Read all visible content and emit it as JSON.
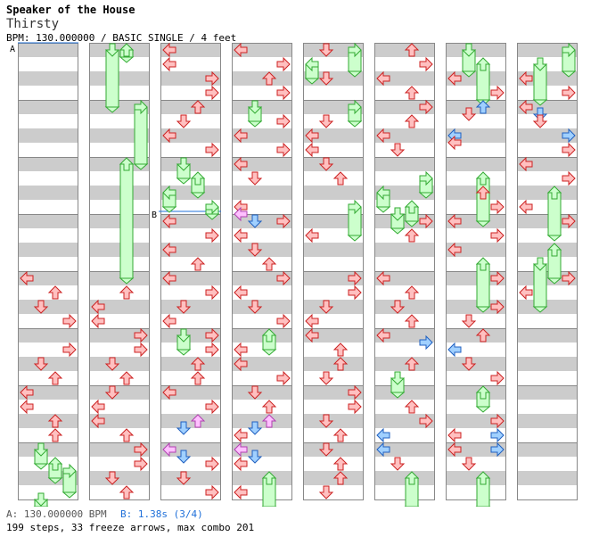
{
  "header": {
    "song_title": "Speaker of the House",
    "artist": "Thirsty",
    "chart_info": "BPM: 130.000000 / BASIC SINGLE / 4 feet"
  },
  "markers": {
    "a": "A",
    "b": "B"
  },
  "footer": {
    "bpm_line": "A: 130.000000 BPM",
    "stop_line": "B: 1.38s (3/4)",
    "stats": "199 steps, 33 freeze arrows, max combo 201"
  },
  "colors": {
    "stripe": "#cccccc",
    "frame": "#888888",
    "arrow_fill": "#ffc0c0",
    "arrow_stroke": "#cc2222",
    "blue_fill": "#a0d0ff",
    "blue_stroke": "#2060c0",
    "pink_fill": "#ffc0ff",
    "pink_stroke": "#b040b0",
    "freeze_fill": "#ccffcc",
    "freeze_stroke": "#33aa33",
    "marker_line": "#1e6fd9"
  },
  "notes": [
    {
      "c": 0,
      "t": "16",
      "d": "L",
      "k": "n"
    },
    {
      "c": 0,
      "t": "17",
      "d": "U",
      "k": "n"
    },
    {
      "c": 0,
      "t": "18",
      "d": "D",
      "k": "n"
    },
    {
      "c": 0,
      "t": "19",
      "d": "R",
      "k": "n"
    },
    {
      "c": 0,
      "t": "21",
      "d": "R",
      "k": "n"
    },
    {
      "c": 0,
      "t": "22",
      "d": "D",
      "k": "n"
    },
    {
      "c": 0,
      "t": "23",
      "d": "U",
      "k": "n"
    },
    {
      "c": 0,
      "t": "24",
      "d": "L",
      "k": "n"
    },
    {
      "c": 0,
      "t": "25",
      "d": "L",
      "k": "n"
    },
    {
      "c": 0,
      "t": "26",
      "d": "U",
      "k": "n"
    },
    {
      "c": 0,
      "t": "27",
      "d": "U",
      "k": "n"
    },
    {
      "c": 0,
      "t": "28",
      "d": "D",
      "k": "f",
      "e": "29"
    },
    {
      "c": 0,
      "t": "29",
      "d": "U",
      "k": "f",
      "e": "30"
    },
    {
      "c": 0,
      "t": "29.5",
      "d": "R",
      "k": "f",
      "e": "31"
    },
    {
      "c": 0,
      "t": "31.5",
      "d": "D",
      "k": "f",
      "e": "32"
    },
    {
      "c": 1,
      "t": "0",
      "d": "D",
      "k": "f",
      "e": "4"
    },
    {
      "c": 1,
      "t": "0",
      "d": "U",
      "k": "f",
      "e": "0.5"
    },
    {
      "c": 1,
      "t": "4",
      "d": "R",
      "k": "f",
      "e": "8"
    },
    {
      "c": 1,
      "t": "8",
      "d": "U",
      "k": "f",
      "e": "16"
    },
    {
      "c": 1,
      "t": "17",
      "d": "U",
      "k": "n"
    },
    {
      "c": 1,
      "t": "18",
      "d": "L",
      "k": "n"
    },
    {
      "c": 1,
      "t": "19",
      "d": "L",
      "k": "n"
    },
    {
      "c": 1,
      "t": "20",
      "d": "R",
      "k": "n"
    },
    {
      "c": 1,
      "t": "21",
      "d": "R",
      "k": "n"
    },
    {
      "c": 1,
      "t": "22",
      "d": "D",
      "k": "n"
    },
    {
      "c": 1,
      "t": "23",
      "d": "U",
      "k": "n"
    },
    {
      "c": 1,
      "t": "24",
      "d": "D",
      "k": "n"
    },
    {
      "c": 1,
      "t": "25",
      "d": "L",
      "k": "n"
    },
    {
      "c": 1,
      "t": "26",
      "d": "L",
      "k": "n"
    },
    {
      "c": 1,
      "t": "27",
      "d": "U",
      "k": "n"
    },
    {
      "c": 1,
      "t": "28",
      "d": "R",
      "k": "n"
    },
    {
      "c": 1,
      "t": "29",
      "d": "R",
      "k": "n"
    },
    {
      "c": 1,
      "t": "30",
      "d": "D",
      "k": "n"
    },
    {
      "c": 1,
      "t": "31",
      "d": "U",
      "k": "n"
    },
    {
      "c": 2,
      "t": "0",
      "d": "L",
      "k": "n"
    },
    {
      "c": 2,
      "t": "1",
      "d": "L",
      "k": "n"
    },
    {
      "c": 2,
      "t": "2",
      "d": "R",
      "k": "n"
    },
    {
      "c": 2,
      "t": "3",
      "d": "R",
      "k": "n"
    },
    {
      "c": 2,
      "t": "4",
      "d": "U",
      "k": "n"
    },
    {
      "c": 2,
      "t": "5",
      "d": "D",
      "k": "n"
    },
    {
      "c": 2,
      "t": "6",
      "d": "L",
      "k": "n"
    },
    {
      "c": 2,
      "t": "7",
      "d": "R",
      "k": "n"
    },
    {
      "c": 2,
      "t": "8",
      "d": "D",
      "k": "f",
      "e": "9"
    },
    {
      "c": 2,
      "t": "9",
      "d": "U",
      "k": "f",
      "e": "10"
    },
    {
      "c": 2,
      "t": "10",
      "d": "L",
      "k": "f",
      "e": "11"
    },
    {
      "c": 2,
      "t": "11",
      "d": "R",
      "k": "f",
      "e": "11.5"
    },
    {
      "c": 2,
      "t": "12",
      "d": "L",
      "k": "n"
    },
    {
      "c": 2,
      "t": "13",
      "d": "R",
      "k": "n"
    },
    {
      "c": 2,
      "t": "14",
      "d": "L",
      "k": "n"
    },
    {
      "c": 2,
      "t": "15",
      "d": "U",
      "k": "n"
    },
    {
      "c": 2,
      "t": "16",
      "d": "L",
      "k": "n"
    },
    {
      "c": 2,
      "t": "17",
      "d": "R",
      "k": "n"
    },
    {
      "c": 2,
      "t": "18",
      "d": "D",
      "k": "n"
    },
    {
      "c": 2,
      "t": "19",
      "d": "L",
      "k": "n"
    },
    {
      "c": 2,
      "t": "20",
      "d": "D",
      "k": "f",
      "e": "21"
    },
    {
      "c": 2,
      "t": "20",
      "d": "R",
      "k": "n"
    },
    {
      "c": 2,
      "t": "21",
      "d": "R",
      "k": "n"
    },
    {
      "c": 2,
      "t": "22",
      "d": "U",
      "k": "n"
    },
    {
      "c": 2,
      "t": "23",
      "d": "U",
      "k": "n"
    },
    {
      "c": 2,
      "t": "24",
      "d": "L",
      "k": "n"
    },
    {
      "c": 2,
      "t": "25",
      "d": "R",
      "k": "n"
    },
    {
      "c": 2,
      "t": "26",
      "d": "U",
      "k": "p"
    },
    {
      "c": 2,
      "t": "26.5",
      "d": "D",
      "k": "b"
    },
    {
      "c": 2,
      "t": "28",
      "d": "L",
      "k": "p"
    },
    {
      "c": 2,
      "t": "28.5",
      "d": "D",
      "k": "b"
    },
    {
      "c": 2,
      "t": "29",
      "d": "R",
      "k": "n"
    },
    {
      "c": 2,
      "t": "30",
      "d": "D",
      "k": "n"
    },
    {
      "c": 2,
      "t": "31",
      "d": "R",
      "k": "n"
    },
    {
      "c": 3,
      "t": "0",
      "d": "L",
      "k": "n"
    },
    {
      "c": 3,
      "t": "1",
      "d": "R",
      "k": "n"
    },
    {
      "c": 3,
      "t": "2",
      "d": "U",
      "k": "n"
    },
    {
      "c": 3,
      "t": "3",
      "d": "R",
      "k": "n"
    },
    {
      "c": 3,
      "t": "4",
      "d": "D",
      "k": "f",
      "e": "5"
    },
    {
      "c": 3,
      "t": "5",
      "d": "R",
      "k": "n"
    },
    {
      "c": 3,
      "t": "6",
      "d": "L",
      "k": "n"
    },
    {
      "c": 3,
      "t": "7",
      "d": "R",
      "k": "n"
    },
    {
      "c": 3,
      "t": "8",
      "d": "L",
      "k": "n"
    },
    {
      "c": 3,
      "t": "9",
      "d": "D",
      "k": "n"
    },
    {
      "c": 3,
      "t": "11",
      "d": "L",
      "k": "n"
    },
    {
      "c": 3,
      "t": "11.5",
      "d": "L",
      "k": "p"
    },
    {
      "c": 3,
      "t": "12",
      "d": "D",
      "k": "b"
    },
    {
      "c": 3,
      "t": "12",
      "d": "R",
      "k": "n"
    },
    {
      "c": 3,
      "t": "13",
      "d": "L",
      "k": "n"
    },
    {
      "c": 3,
      "t": "14",
      "d": "D",
      "k": "n"
    },
    {
      "c": 3,
      "t": "15",
      "d": "U",
      "k": "n"
    },
    {
      "c": 3,
      "t": "16",
      "d": "R",
      "k": "n"
    },
    {
      "c": 3,
      "t": "17",
      "d": "L",
      "k": "n"
    },
    {
      "c": 3,
      "t": "18",
      "d": "D",
      "k": "n"
    },
    {
      "c": 3,
      "t": "19",
      "d": "R",
      "k": "n"
    },
    {
      "c": 3,
      "t": "20",
      "d": "U",
      "k": "f",
      "e": "21"
    },
    {
      "c": 3,
      "t": "21",
      "d": "L",
      "k": "n"
    },
    {
      "c": 3,
      "t": "22",
      "d": "L",
      "k": "n"
    },
    {
      "c": 3,
      "t": "23",
      "d": "R",
      "k": "n"
    },
    {
      "c": 3,
      "t": "24",
      "d": "D",
      "k": "n"
    },
    {
      "c": 3,
      "t": "25",
      "d": "U",
      "k": "n"
    },
    {
      "c": 3,
      "t": "26",
      "d": "U",
      "k": "p"
    },
    {
      "c": 3,
      "t": "26.5",
      "d": "D",
      "k": "b"
    },
    {
      "c": 3,
      "t": "27",
      "d": "L",
      "k": "n"
    },
    {
      "c": 3,
      "t": "28",
      "d": "L",
      "k": "p"
    },
    {
      "c": 3,
      "t": "28.5",
      "d": "D",
      "k": "b"
    },
    {
      "c": 3,
      "t": "29",
      "d": "L",
      "k": "n"
    },
    {
      "c": 3,
      "t": "30",
      "d": "U",
      "k": "f",
      "e": "32"
    },
    {
      "c": 3,
      "t": "31",
      "d": "L",
      "k": "n"
    },
    {
      "c": 4,
      "t": "0",
      "d": "R",
      "k": "f",
      "e": "1.5"
    },
    {
      "c": 4,
      "t": "0",
      "d": "D",
      "k": "n"
    },
    {
      "c": 4,
      "t": "1",
      "d": "L",
      "k": "f",
      "e": "2"
    },
    {
      "c": 4,
      "t": "2",
      "d": "D",
      "k": "n"
    },
    {
      "c": 4,
      "t": "4",
      "d": "R",
      "k": "f",
      "e": "5"
    },
    {
      "c": 4,
      "t": "5",
      "d": "D",
      "k": "n"
    },
    {
      "c": 4,
      "t": "6",
      "d": "L",
      "k": "n"
    },
    {
      "c": 4,
      "t": "7",
      "d": "L",
      "k": "n"
    },
    {
      "c": 4,
      "t": "8",
      "d": "D",
      "k": "n"
    },
    {
      "c": 4,
      "t": "9",
      "d": "U",
      "k": "n"
    },
    {
      "c": 4,
      "t": "11",
      "d": "R",
      "k": "f",
      "e": "13"
    },
    {
      "c": 4,
      "t": "13",
      "d": "L",
      "k": "n"
    },
    {
      "c": 4,
      "t": "16",
      "d": "R",
      "k": "n"
    },
    {
      "c": 4,
      "t": "17",
      "d": "R",
      "k": "n"
    },
    {
      "c": 4,
      "t": "18",
      "d": "D",
      "k": "n"
    },
    {
      "c": 4,
      "t": "19",
      "d": "L",
      "k": "n"
    },
    {
      "c": 4,
      "t": "20",
      "d": "L",
      "k": "n"
    },
    {
      "c": 4,
      "t": "21",
      "d": "U",
      "k": "n"
    },
    {
      "c": 4,
      "t": "22",
      "d": "U",
      "k": "n"
    },
    {
      "c": 4,
      "t": "23",
      "d": "D",
      "k": "n"
    },
    {
      "c": 4,
      "t": "24",
      "d": "R",
      "k": "n"
    },
    {
      "c": 4,
      "t": "25",
      "d": "R",
      "k": "n"
    },
    {
      "c": 4,
      "t": "26",
      "d": "D",
      "k": "n"
    },
    {
      "c": 4,
      "t": "27",
      "d": "U",
      "k": "n"
    },
    {
      "c": 4,
      "t": "28",
      "d": "D",
      "k": "n"
    },
    {
      "c": 4,
      "t": "29",
      "d": "U",
      "k": "n"
    },
    {
      "c": 4,
      "t": "30",
      "d": "U",
      "k": "n"
    },
    {
      "c": 4,
      "t": "31",
      "d": "D",
      "k": "n"
    },
    {
      "c": 5,
      "t": "0",
      "d": "U",
      "k": "n"
    },
    {
      "c": 5,
      "t": "1",
      "d": "R",
      "k": "n"
    },
    {
      "c": 5,
      "t": "2",
      "d": "L",
      "k": "n"
    },
    {
      "c": 5,
      "t": "3",
      "d": "U",
      "k": "n"
    },
    {
      "c": 5,
      "t": "4",
      "d": "R",
      "k": "n"
    },
    {
      "c": 5,
      "t": "5",
      "d": "U",
      "k": "n"
    },
    {
      "c": 5,
      "t": "6",
      "d": "L",
      "k": "n"
    },
    {
      "c": 5,
      "t": "7",
      "d": "D",
      "k": "n"
    },
    {
      "c": 5,
      "t": "9",
      "d": "R",
      "k": "f",
      "e": "10"
    },
    {
      "c": 5,
      "t": "10",
      "d": "L",
      "k": "f",
      "e": "11"
    },
    {
      "c": 5,
      "t": "11",
      "d": "U",
      "k": "f",
      "e": "12"
    },
    {
      "c": 5,
      "t": "11.5",
      "d": "D",
      "k": "f",
      "e": "12.5"
    },
    {
      "c": 5,
      "t": "12",
      "d": "R",
      "k": "n"
    },
    {
      "c": 5,
      "t": "13",
      "d": "U",
      "k": "n"
    },
    {
      "c": 5,
      "t": "16",
      "d": "L",
      "k": "n"
    },
    {
      "c": 5,
      "t": "17",
      "d": "U",
      "k": "n"
    },
    {
      "c": 5,
      "t": "18",
      "d": "D",
      "k": "n"
    },
    {
      "c": 5,
      "t": "19",
      "d": "U",
      "k": "n"
    },
    {
      "c": 5,
      "t": "20",
      "d": "L",
      "k": "n"
    },
    {
      "c": 5,
      "t": "20.5",
      "d": "R",
      "k": "b"
    },
    {
      "c": 5,
      "t": "22",
      "d": "U",
      "k": "n"
    },
    {
      "c": 5,
      "t": "23",
      "d": "D",
      "k": "f",
      "e": "24"
    },
    {
      "c": 5,
      "t": "25",
      "d": "U",
      "k": "n"
    },
    {
      "c": 5,
      "t": "26",
      "d": "R",
      "k": "n"
    },
    {
      "c": 5,
      "t": "27",
      "d": "L",
      "k": "b"
    },
    {
      "c": 5,
      "t": "28",
      "d": "L",
      "k": "b"
    },
    {
      "c": 5,
      "t": "29",
      "d": "D",
      "k": "n"
    },
    {
      "c": 5,
      "t": "30",
      "d": "U",
      "k": "f",
      "e": "32"
    },
    {
      "c": 6,
      "t": "0",
      "d": "D",
      "k": "f",
      "e": "1.5"
    },
    {
      "c": 6,
      "t": "1",
      "d": "U",
      "k": "f",
      "e": "3.5"
    },
    {
      "c": 6,
      "t": "2",
      "d": "L",
      "k": "n"
    },
    {
      "c": 6,
      "t": "3",
      "d": "R",
      "k": "n"
    },
    {
      "c": 6,
      "t": "4",
      "d": "U",
      "k": "b"
    },
    {
      "c": 6,
      "t": "4.5",
      "d": "D",
      "k": "n"
    },
    {
      "c": 6,
      "t": "6",
      "d": "L",
      "k": "b"
    },
    {
      "c": 6,
      "t": "6.5",
      "d": "L",
      "k": "n"
    },
    {
      "c": 6,
      "t": "9",
      "d": "U",
      "k": "f",
      "e": "12"
    },
    {
      "c": 6,
      "t": "10",
      "d": "U",
      "k": "n"
    },
    {
      "c": 6,
      "t": "11",
      "d": "R",
      "k": "n"
    },
    {
      "c": 6,
      "t": "12",
      "d": "L",
      "k": "n"
    },
    {
      "c": 6,
      "t": "13",
      "d": "R",
      "k": "n"
    },
    {
      "c": 6,
      "t": "14",
      "d": "L",
      "k": "n"
    },
    {
      "c": 6,
      "t": "15",
      "d": "U",
      "k": "f",
      "e": "18"
    },
    {
      "c": 6,
      "t": "16",
      "d": "R",
      "k": "n"
    },
    {
      "c": 6,
      "t": "18",
      "d": "R",
      "k": "n"
    },
    {
      "c": 6,
      "t": "19",
      "d": "D",
      "k": "n"
    },
    {
      "c": 6,
      "t": "20",
      "d": "U",
      "k": "n"
    },
    {
      "c": 6,
      "t": "21",
      "d": "L",
      "k": "b"
    },
    {
      "c": 6,
      "t": "22",
      "d": "D",
      "k": "n"
    },
    {
      "c": 6,
      "t": "23",
      "d": "R",
      "k": "n"
    },
    {
      "c": 6,
      "t": "24",
      "d": "U",
      "k": "f",
      "e": "25"
    },
    {
      "c": 6,
      "t": "26",
      "d": "R",
      "k": "n"
    },
    {
      "c": 6,
      "t": "27",
      "d": "L",
      "k": "n"
    },
    {
      "c": 6,
      "t": "27",
      "d": "R",
      "k": "b"
    },
    {
      "c": 6,
      "t": "28",
      "d": "L",
      "k": "n"
    },
    {
      "c": 6,
      "t": "28",
      "d": "R",
      "k": "b"
    },
    {
      "c": 6,
      "t": "29",
      "d": "D",
      "k": "n"
    },
    {
      "c": 6,
      "t": "30",
      "d": "U",
      "k": "f",
      "e": "32"
    },
    {
      "c": 7,
      "t": "0",
      "d": "R",
      "k": "f",
      "e": "1.5"
    },
    {
      "c": 7,
      "t": "1",
      "d": "D",
      "k": "f",
      "e": "3.5"
    },
    {
      "c": 7,
      "t": "2",
      "d": "L",
      "k": "n"
    },
    {
      "c": 7,
      "t": "3",
      "d": "R",
      "k": "n"
    },
    {
      "c": 7,
      "t": "4",
      "d": "L",
      "k": "n"
    },
    {
      "c": 7,
      "t": "4.5",
      "d": "D",
      "k": "b"
    },
    {
      "c": 7,
      "t": "5",
      "d": "D",
      "k": "n"
    },
    {
      "c": 7,
      "t": "6",
      "d": "R",
      "k": "b"
    },
    {
      "c": 7,
      "t": "7",
      "d": "R",
      "k": "n"
    },
    {
      "c": 7,
      "t": "8",
      "d": "L",
      "k": "n"
    },
    {
      "c": 7,
      "t": "9",
      "d": "R",
      "k": "n"
    },
    {
      "c": 7,
      "t": "10",
      "d": "U",
      "k": "f",
      "e": "13"
    },
    {
      "c": 7,
      "t": "11",
      "d": "L",
      "k": "n"
    },
    {
      "c": 7,
      "t": "12",
      "d": "R",
      "k": "n"
    },
    {
      "c": 7,
      "t": "14",
      "d": "U",
      "k": "f",
      "e": "16"
    },
    {
      "c": 7,
      "t": "15",
      "d": "D",
      "k": "f",
      "e": "18"
    },
    {
      "c": 7,
      "t": "16",
      "d": "R",
      "k": "n"
    },
    {
      "c": 7,
      "t": "17",
      "d": "L",
      "k": "n"
    }
  ]
}
